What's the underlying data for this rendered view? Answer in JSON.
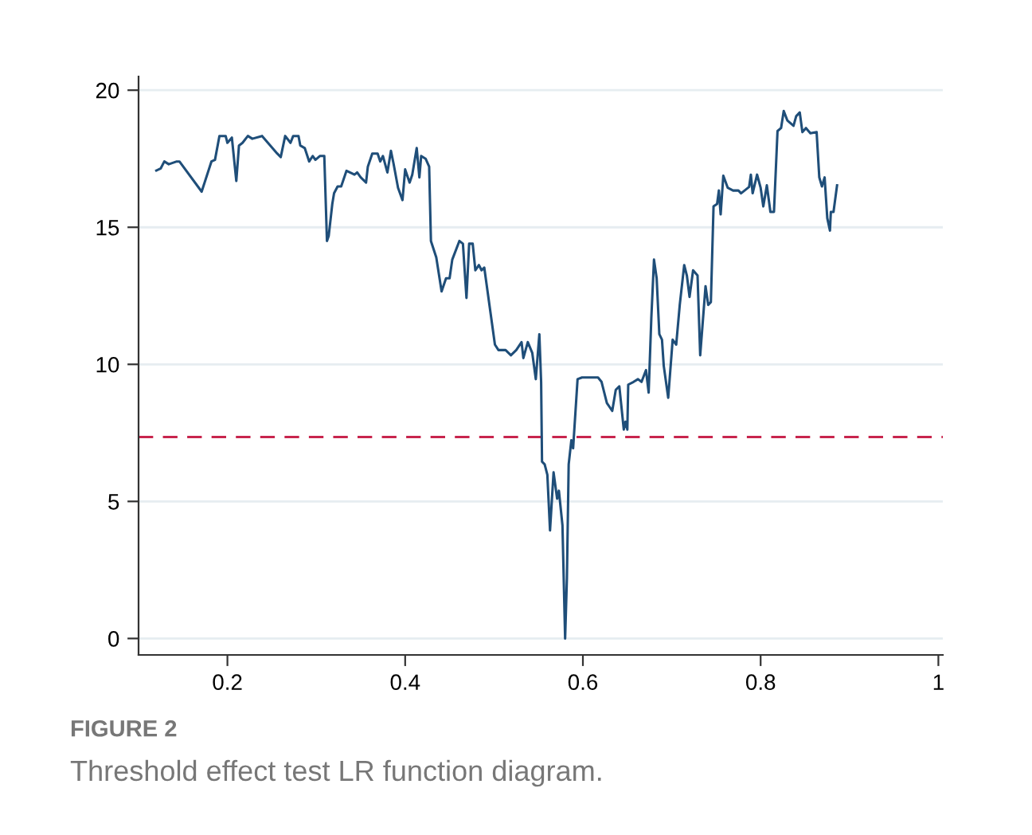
{
  "chart_data": {
    "type": "line",
    "x": [
      0.12,
      0.125,
      0.129,
      0.134,
      0.143,
      0.146,
      0.171,
      0.182,
      0.186,
      0.191,
      0.198,
      0.2,
      0.205,
      0.21,
      0.213,
      0.217,
      0.223,
      0.228,
      0.239,
      0.256,
      0.26,
      0.265,
      0.271,
      0.274,
      0.28,
      0.282,
      0.287,
      0.292,
      0.296,
      0.299,
      0.304,
      0.309,
      0.312,
      0.314,
      0.318,
      0.32,
      0.324,
      0.328,
      0.334,
      0.343,
      0.346,
      0.35,
      0.356,
      0.358,
      0.363,
      0.369,
      0.372,
      0.375,
      0.38,
      0.384,
      0.387,
      0.392,
      0.397,
      0.4,
      0.405,
      0.408,
      0.413,
      0.416,
      0.418,
      0.423,
      0.427,
      0.429,
      0.435,
      0.441,
      0.446,
      0.45,
      0.453,
      0.461,
      0.465,
      0.469,
      0.472,
      0.476,
      0.479,
      0.483,
      0.486,
      0.489,
      0.501,
      0.505,
      0.513,
      0.519,
      0.525,
      0.531,
      0.533,
      0.538,
      0.543,
      0.547,
      0.551,
      0.553,
      0.554,
      0.557,
      0.56,
      0.563,
      0.567,
      0.571,
      0.573,
      0.577,
      0.58,
      0.582,
      0.584,
      0.587,
      0.589,
      0.594,
      0.599,
      0.617,
      0.621,
      0.627,
      0.633,
      0.637,
      0.641,
      0.646,
      0.648,
      0.65,
      0.651,
      0.657,
      0.662,
      0.666,
      0.671,
      0.674,
      0.677,
      0.68,
      0.683,
      0.686,
      0.689,
      0.691,
      0.696,
      0.701,
      0.705,
      0.709,
      0.714,
      0.717,
      0.72,
      0.724,
      0.729,
      0.732,
      0.738,
      0.741,
      0.744,
      0.747,
      0.751,
      0.753,
      0.755,
      0.758,
      0.763,
      0.769,
      0.775,
      0.778,
      0.787,
      0.789,
      0.791,
      0.796,
      0.8,
      0.803,
      0.807,
      0.811,
      0.815,
      0.819,
      0.823,
      0.826,
      0.83,
      0.837,
      0.84,
      0.844,
      0.847,
      0.851,
      0.856,
      0.863,
      0.866,
      0.869,
      0.872,
      0.875,
      0.878,
      0.879,
      0.882,
      0.886
    ],
    "series": [
      {
        "color": "#1f4e79",
        "values": [
          17.07,
          17.15,
          17.4,
          17.3,
          17.4,
          17.4,
          16.3,
          17.4,
          17.46,
          18.33,
          18.33,
          18.08,
          18.27,
          16.69,
          17.98,
          18.08,
          18.33,
          18.23,
          18.33,
          17.69,
          17.56,
          18.33,
          18.08,
          18.33,
          18.33,
          17.98,
          17.89,
          17.4,
          17.6,
          17.46,
          17.6,
          17.6,
          14.5,
          14.69,
          15.85,
          16.24,
          16.49,
          16.49,
          17.06,
          16.92,
          17.0,
          16.82,
          16.63,
          17.21,
          17.69,
          17.69,
          17.4,
          17.6,
          17.0,
          17.79,
          17.31,
          16.44,
          15.99,
          17.11,
          16.63,
          16.92,
          17.89,
          16.82,
          17.6,
          17.5,
          17.21,
          14.5,
          13.9,
          12.66,
          13.14,
          13.14,
          13.82,
          14.5,
          14.4,
          12.42,
          14.4,
          14.4,
          13.43,
          13.62,
          13.43,
          13.53,
          10.72,
          10.52,
          10.52,
          10.33,
          10.52,
          10.81,
          10.23,
          10.81,
          10.42,
          9.46,
          11.1,
          9.36,
          6.45,
          6.35,
          5.97,
          3.94,
          6.06,
          5.1,
          5.39,
          4.13,
          0,
          2.19,
          6.35,
          7.23,
          6.94,
          9.46,
          9.52,
          9.52,
          9.36,
          8.59,
          8.3,
          9.07,
          9.2,
          7.62,
          7.91,
          7.62,
          9.26,
          9.36,
          9.46,
          9.36,
          9.79,
          8.97,
          11.69,
          13.82,
          13.14,
          11.1,
          10.9,
          9.94,
          8.78,
          10.9,
          10.72,
          12.17,
          13.62,
          13.24,
          12.46,
          13.43,
          13.24,
          10.33,
          12.85,
          12.17,
          12.27,
          15.76,
          15.85,
          16.34,
          15.47,
          16.88,
          16.44,
          16.34,
          16.34,
          16.24,
          16.47,
          16.92,
          16.24,
          16.92,
          16.44,
          15.76,
          16.53,
          15.56,
          15.56,
          18.51,
          18.62,
          19.24,
          18.9,
          18.7,
          19.05,
          19.19,
          18.47,
          18.62,
          18.43,
          18.47,
          16.82,
          16.49,
          16.82,
          15.33,
          14.88,
          15.56,
          15.56,
          16.53
        ]
      }
    ],
    "xlim": [
      0.1,
      1.005
    ],
    "ylim": [
      -0.6,
      20.5
    ],
    "xticks": [
      0.2,
      0.4,
      0.6,
      0.8,
      1
    ],
    "yticks": [
      0,
      5,
      10,
      15,
      20
    ],
    "grid": "y",
    "legend": false,
    "marker": "none",
    "line_style": "solid",
    "ref_lines": [
      {
        "axis": "y",
        "value": 7.35,
        "label": null,
        "color": "#c8254d",
        "line_style": "dashed"
      }
    ],
    "annotations": [
      "FIGURE 2",
      "Threshold effect test LR function diagram."
    ]
  }
}
